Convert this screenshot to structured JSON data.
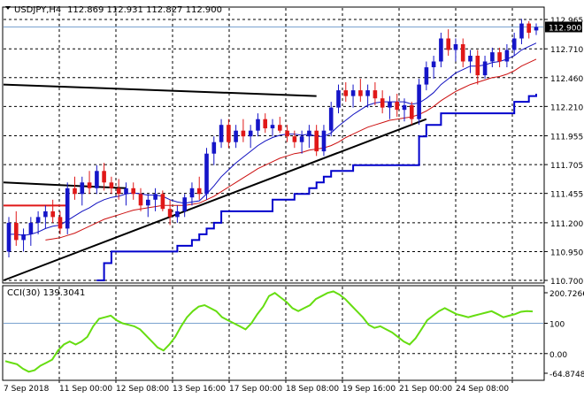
{
  "header": {
    "symbol_timeframe": "USDJPY,H4",
    "ohlc": "112.869 112.931 112.827 112.900",
    "indicator": "CCI(30) 139.3041"
  },
  "colors": {
    "bull_candle": "#1515c8",
    "bear_candle": "#e01818",
    "ma_fast": "#1010c0",
    "ma_slow": "#cc1010",
    "trail_stop": "#0000cc",
    "trendline": "#000000",
    "cci_line": "#66dd11",
    "grid": "#000000",
    "level_line": "#7aa2cf",
    "price_box_bg": "#000000",
    "price_box_fg": "#ffffff"
  },
  "chart_data": [
    {
      "type": "candlestick",
      "symbol": "USDJPY",
      "timeframe": "H4",
      "current_price": "112.900",
      "y_ticks": [
        "112.965",
        "112.710",
        "112.460",
        "112.210",
        "111.955",
        "111.705",
        "111.455",
        "111.200",
        "110.950",
        "110.700"
      ],
      "ylim": [
        110.7,
        113.0
      ],
      "x_ticks": [
        "7 Sep 2018",
        "11 Sep 00:00",
        "12 Sep 08:00",
        "13 Sep 16:00",
        "17 Sep 00:00",
        "18 Sep 08:00",
        "19 Sep 16:00",
        "21 Sep 00:00",
        "24 Sep 08:00"
      ],
      "candles": [
        [
          110.95,
          111.25,
          110.9,
          111.2
        ],
        [
          111.2,
          111.3,
          111.0,
          111.05
        ],
        [
          111.05,
          111.15,
          110.95,
          111.1
        ],
        [
          111.1,
          111.25,
          111.0,
          111.2
        ],
        [
          111.2,
          111.3,
          111.1,
          111.25
        ],
        [
          111.25,
          111.35,
          111.15,
          111.3
        ],
        [
          111.3,
          111.4,
          111.2,
          111.25
        ],
        [
          111.25,
          111.3,
          111.1,
          111.15
        ],
        [
          111.15,
          111.55,
          111.1,
          111.5
        ],
        [
          111.5,
          111.6,
          111.4,
          111.45
        ],
        [
          111.45,
          111.6,
          111.35,
          111.55
        ],
        [
          111.55,
          111.65,
          111.45,
          111.5
        ],
        [
          111.5,
          111.7,
          111.45,
          111.65
        ],
        [
          111.65,
          111.72,
          111.48,
          111.55
        ],
        [
          111.55,
          111.6,
          111.45,
          111.5
        ],
        [
          111.5,
          111.58,
          111.4,
          111.45
        ],
        [
          111.45,
          111.55,
          111.35,
          111.5
        ],
        [
          111.5,
          111.55,
          111.4,
          111.45
        ],
        [
          111.45,
          111.5,
          111.3,
          111.35
        ],
        [
          111.35,
          111.45,
          111.25,
          111.4
        ],
        [
          111.4,
          111.5,
          111.3,
          111.45
        ],
        [
          111.45,
          111.48,
          111.3,
          111.32
        ],
        [
          111.32,
          111.4,
          111.18,
          111.25
        ],
        [
          111.25,
          111.35,
          111.2,
          111.3
        ],
        [
          111.3,
          111.45,
          111.25,
          111.42
        ],
        [
          111.42,
          111.55,
          111.35,
          111.5
        ],
        [
          111.5,
          111.6,
          111.4,
          111.45
        ],
        [
          111.45,
          111.85,
          111.4,
          111.8
        ],
        [
          111.8,
          111.95,
          111.7,
          111.9
        ],
        [
          111.9,
          112.1,
          111.85,
          112.05
        ],
        [
          112.05,
          112.1,
          111.85,
          111.9
        ],
        [
          111.9,
          112.05,
          111.85,
          112.0
        ],
        [
          112.0,
          112.1,
          111.9,
          111.95
        ],
        [
          111.95,
          112.05,
          111.85,
          112.0
        ],
        [
          112.0,
          112.15,
          111.95,
          112.1
        ],
        [
          112.1,
          112.15,
          111.98,
          112.02
        ],
        [
          112.02,
          112.1,
          111.95,
          112.05
        ],
        [
          112.05,
          112.12,
          111.98,
          112.0
        ],
        [
          112.0,
          112.05,
          111.9,
          111.95
        ],
        [
          111.95,
          112.0,
          111.85,
          111.9
        ],
        [
          111.9,
          112.0,
          111.8,
          111.95
        ],
        [
          111.95,
          112.05,
          111.85,
          112.0
        ],
        [
          112.0,
          112.05,
          111.78,
          111.82
        ],
        [
          111.82,
          112.05,
          111.78,
          112.0
        ],
        [
          112.0,
          112.25,
          111.95,
          112.2
        ],
        [
          112.2,
          112.4,
          112.15,
          112.35
        ],
        [
          112.35,
          112.42,
          112.25,
          112.3
        ],
        [
          112.3,
          112.4,
          112.2,
          112.35
        ],
        [
          112.35,
          112.45,
          112.25,
          112.3
        ],
        [
          112.3,
          112.4,
          112.2,
          112.35
        ],
        [
          112.35,
          112.42,
          112.22,
          112.28
        ],
        [
          112.28,
          112.35,
          112.15,
          112.2
        ],
        [
          112.2,
          112.3,
          112.1,
          112.25
        ],
        [
          112.25,
          112.32,
          112.12,
          112.18
        ],
        [
          112.18,
          112.28,
          112.08,
          112.22
        ],
        [
          112.22,
          112.25,
          112.05,
          112.1
        ],
        [
          112.1,
          112.45,
          112.05,
          112.4
        ],
        [
          112.4,
          112.6,
          112.35,
          112.55
        ],
        [
          112.55,
          112.65,
          112.45,
          112.6
        ],
        [
          112.6,
          112.85,
          112.55,
          112.8
        ],
        [
          112.8,
          112.88,
          112.65,
          112.7
        ],
        [
          112.7,
          112.8,
          112.6,
          112.75
        ],
        [
          112.75,
          112.8,
          112.55,
          112.6
        ],
        [
          112.6,
          112.7,
          112.5,
          112.65
        ],
        [
          112.65,
          112.7,
          112.4,
          112.48
        ],
        [
          112.48,
          112.65,
          112.45,
          112.6
        ],
        [
          112.6,
          112.72,
          112.55,
          112.68
        ],
        [
          112.68,
          112.72,
          112.55,
          112.6
        ],
        [
          112.6,
          112.75,
          112.55,
          112.7
        ],
        [
          112.7,
          112.85,
          112.65,
          112.8
        ],
        [
          112.8,
          112.97,
          112.75,
          112.93
        ],
        [
          112.93,
          112.95,
          112.8,
          112.85
        ],
        [
          112.87,
          112.93,
          112.83,
          112.9
        ]
      ],
      "ma_fast": [
        111.1,
        111.1,
        111.09,
        111.1,
        111.12,
        111.15,
        111.17,
        111.18,
        111.22,
        111.26,
        111.3,
        111.33,
        111.37,
        111.4,
        111.42,
        111.43,
        111.45,
        111.46,
        111.45,
        111.44,
        111.44,
        111.43,
        111.4,
        111.38,
        111.37,
        111.38,
        111.39,
        111.45,
        111.52,
        111.6,
        111.66,
        111.72,
        111.77,
        111.82,
        111.87,
        111.91,
        111.94,
        111.96,
        111.97,
        111.97,
        111.96,
        111.97,
        111.95,
        111.95,
        111.98,
        112.04,
        112.09,
        112.14,
        112.18,
        112.22,
        112.24,
        112.25,
        112.25,
        112.25,
        112.25,
        112.23,
        112.24,
        112.28,
        112.33,
        112.4,
        112.45,
        112.5,
        112.53,
        112.56,
        112.56,
        112.57,
        112.59,
        112.6,
        112.62,
        112.65,
        112.7,
        112.73,
        112.76
      ],
      "ma_slow": [
        null,
        null,
        null,
        null,
        null,
        111.05,
        111.06,
        111.07,
        111.09,
        111.11,
        111.14,
        111.17,
        111.2,
        111.23,
        111.25,
        111.27,
        111.29,
        111.31,
        111.32,
        111.33,
        111.34,
        111.35,
        111.35,
        111.35,
        111.35,
        111.36,
        111.37,
        111.4,
        111.43,
        111.47,
        111.51,
        111.55,
        111.59,
        111.63,
        111.67,
        111.7,
        111.73,
        111.76,
        111.78,
        111.8,
        111.81,
        111.83,
        111.84,
        111.85,
        111.87,
        111.9,
        111.94,
        111.97,
        112.0,
        112.03,
        112.05,
        112.07,
        112.09,
        112.1,
        112.11,
        112.12,
        112.14,
        112.17,
        112.21,
        112.26,
        112.3,
        112.34,
        112.37,
        112.4,
        112.42,
        112.44,
        112.46,
        112.47,
        112.49,
        112.52,
        112.56,
        112.59,
        112.62
      ],
      "trail_stop": [
        null,
        null,
        null,
        null,
        null,
        null,
        null,
        null,
        null,
        null,
        null,
        null,
        110.7,
        110.85,
        110.95,
        110.95,
        110.95,
        110.95,
        110.95,
        110.95,
        110.95,
        110.95,
        110.95,
        111.0,
        111.0,
        111.05,
        111.1,
        111.15,
        111.2,
        111.3,
        111.3,
        111.3,
        111.3,
        111.3,
        111.3,
        111.3,
        111.4,
        111.4,
        111.4,
        111.45,
        111.45,
        111.5,
        111.55,
        111.6,
        111.65,
        111.65,
        111.65,
        111.7,
        111.7,
        111.7,
        111.7,
        111.7,
        111.7,
        111.7,
        111.7,
        111.7,
        111.95,
        112.05,
        112.05,
        112.15,
        112.15,
        112.15,
        112.15,
        112.15,
        112.15,
        112.15,
        112.15,
        112.15,
        112.15,
        112.25,
        112.25,
        112.3,
        112.32
      ],
      "red_level": {
        "from": 0,
        "to": 8,
        "value": 111.35
      },
      "trendlines": [
        {
          "from": [
            0,
            112.4
          ],
          "to": [
            42,
            112.3
          ]
        },
        {
          "from": [
            0,
            111.55
          ],
          "to": [
            16,
            111.5
          ]
        },
        {
          "from": [
            0,
            110.7
          ],
          "to": [
            57,
            112.1
          ]
        }
      ]
    },
    {
      "type": "line",
      "name": "CCI(30)",
      "y_ticks": [
        "200.7266",
        "100",
        "0.00",
        "-64.8748"
      ],
      "ylim": [
        -64.8748,
        200.7266
      ],
      "level": 100,
      "values": [
        -25,
        -30,
        -35,
        -50,
        -60,
        -55,
        -40,
        -30,
        -20,
        10,
        30,
        40,
        30,
        40,
        55,
        90,
        115,
        120,
        125,
        110,
        100,
        95,
        90,
        80,
        60,
        40,
        20,
        10,
        30,
        55,
        90,
        120,
        140,
        155,
        160,
        150,
        140,
        120,
        110,
        100,
        90,
        80,
        100,
        130,
        155,
        190,
        200,
        185,
        170,
        150,
        140,
        150,
        160,
        180,
        190,
        200,
        205,
        195,
        180,
        160,
        140,
        120,
        95,
        85,
        90,
        80,
        70,
        55,
        40,
        30,
        50,
        80,
        110,
        125,
        140,
        150,
        140,
        130,
        125,
        120,
        125,
        130,
        135,
        140,
        130,
        120,
        125,
        130,
        138,
        140,
        139
      ]
    }
  ]
}
